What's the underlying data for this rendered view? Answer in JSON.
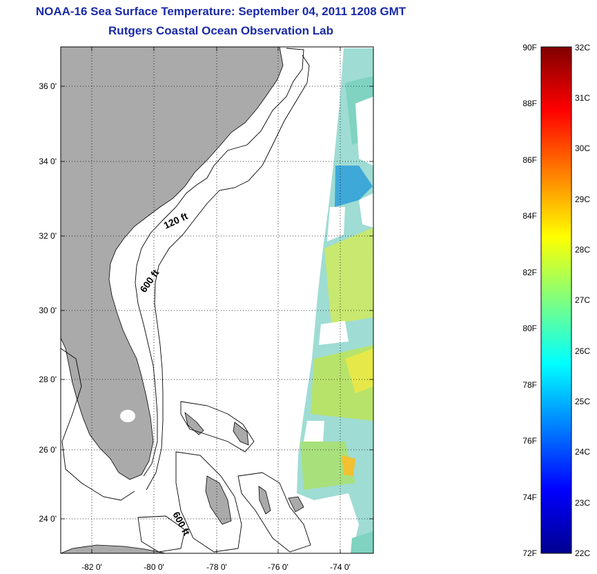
{
  "title": {
    "line1": "NOAA-16 Sea Surface Temperature:  September 04, 2011 1208 GMT",
    "line2": "Rutgers Coastal Ocean Observation Lab"
  },
  "map": {
    "lat_ticks": [
      "36 0'",
      "34 0'",
      "32 0'",
      "30 0'",
      "28 0'",
      "26 0'",
      "24 0'"
    ],
    "lon_ticks": [
      "-82 0'",
      "-80 0'",
      "-78 0'",
      "-76 0'",
      "-74 0'"
    ],
    "contour_labels": [
      "120 ft",
      "600 ft",
      "600 ft"
    ],
    "land_color": "#aaaaaa",
    "grid": "dotted"
  },
  "colorbar": {
    "fahrenheit_labels": [
      "90F",
      "88F",
      "86F",
      "84F",
      "82F",
      "80F",
      "78F",
      "76F",
      "74F",
      "72F"
    ],
    "celsius_labels": [
      "32C",
      "31C",
      "30C",
      "29C",
      "28C",
      "27C",
      "26C",
      "25C",
      "24C",
      "23C",
      "22C"
    ],
    "colormap": "jet",
    "range_c": [
      22,
      32
    ],
    "range_f": [
      72,
      90
    ]
  }
}
